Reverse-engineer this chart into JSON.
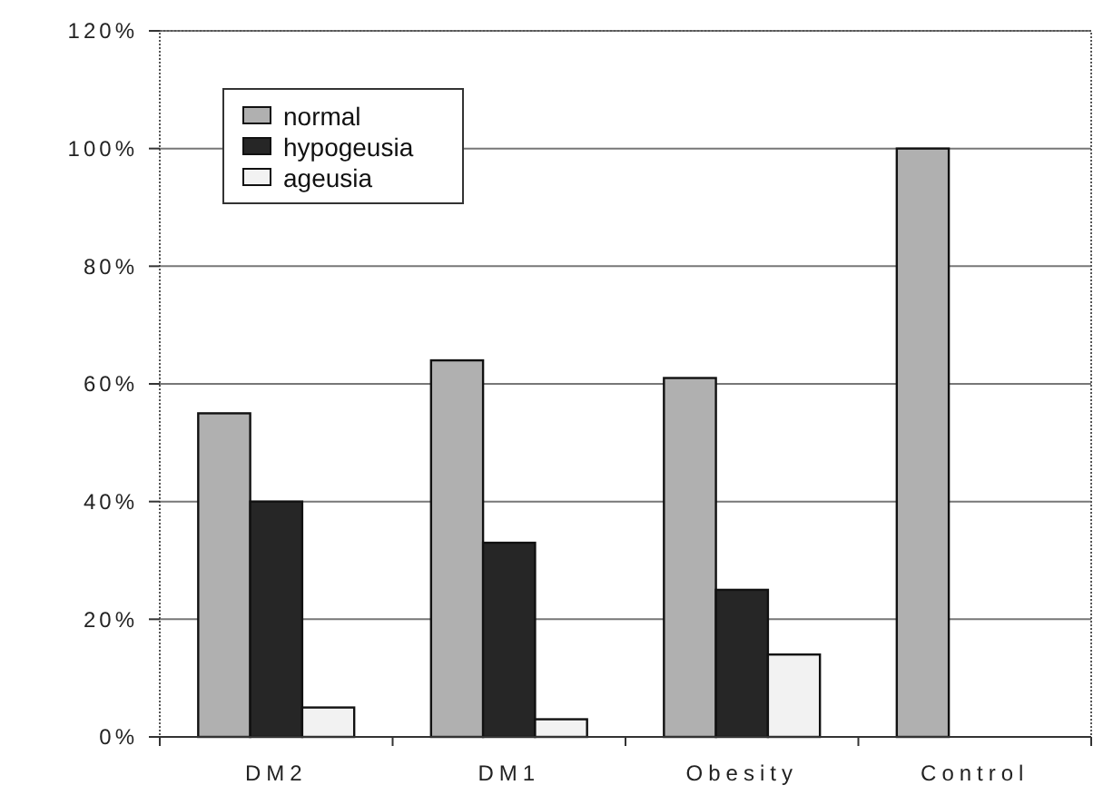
{
  "chart_data": {
    "type": "bar",
    "categories": [
      "DM2",
      "DM1",
      "Obesity",
      "Control"
    ],
    "series": [
      {
        "name": "normal",
        "color": "#b0b0b0",
        "values": [
          55,
          64,
          61,
          100
        ]
      },
      {
        "name": "hypogeusia",
        "color": "#262626",
        "values": [
          40,
          33,
          25,
          0
        ]
      },
      {
        "name": "ageusia",
        "color": "#f2f2f2",
        "values": [
          5,
          3,
          14,
          0
        ]
      }
    ],
    "ylim": [
      0,
      120
    ],
    "yticks": [
      {
        "value": 0,
        "label": "0%"
      },
      {
        "value": 20,
        "label": "20%"
      },
      {
        "value": 40,
        "label": "40%"
      },
      {
        "value": 60,
        "label": "60%"
      },
      {
        "value": 80,
        "label": "80%"
      },
      {
        "value": 100,
        "label": "100%"
      },
      {
        "value": 120,
        "label": "120%"
      }
    ],
    "grid": "y",
    "legend": "top left"
  }
}
